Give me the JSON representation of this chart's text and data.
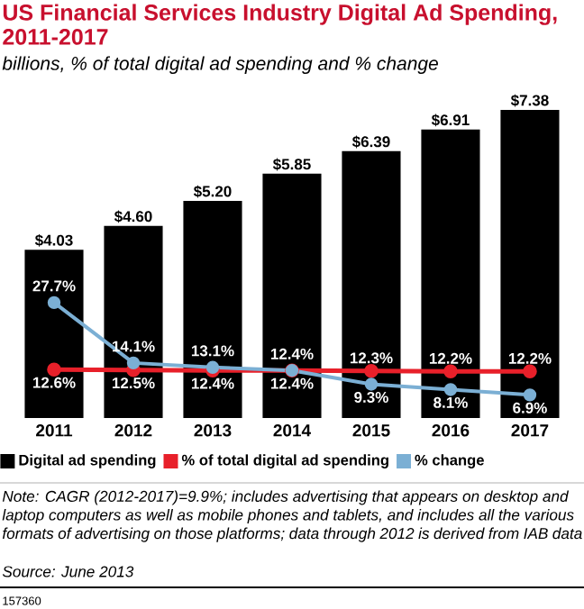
{
  "chart_data": {
    "type": "bar",
    "title": "US Financial Services Industry Digital Ad Spending, 2011-2017",
    "subtitle": "billions, % of total digital ad spending and % change",
    "categories": [
      "2011",
      "2012",
      "2013",
      "2014",
      "2015",
      "2016",
      "2017"
    ],
    "series": [
      {
        "name": "Digital ad spending",
        "color": "#000000",
        "values": [
          4.03,
          4.6,
          5.2,
          5.85,
          6.39,
          6.91,
          7.38
        ],
        "value_labels": [
          "$4.03",
          "$4.60",
          "$5.20",
          "$5.85",
          "$6.39",
          "$6.91",
          "$7.38"
        ]
      },
      {
        "name": "% of total digital ad spending",
        "type": "line",
        "axis": "y2",
        "color": "#e8202a",
        "values": [
          12.6,
          12.5,
          12.4,
          12.4,
          12.3,
          12.2,
          12.2
        ],
        "value_labels": [
          "12.6%",
          "12.5%",
          "12.4%",
          "12.4%",
          "12.3%",
          "12.2%",
          "12.2%"
        ]
      },
      {
        "name": "% change",
        "type": "line",
        "axis": "y2",
        "color": "#7bafd4",
        "values": [
          27.7,
          14.1,
          13.1,
          12.4,
          9.3,
          8.1,
          6.9
        ],
        "value_labels": [
          "27.7%",
          "14.1%",
          "13.1%",
          "12.4%",
          "9.3%",
          "8.1%",
          "6.9%"
        ]
      }
    ],
    "legend": "bottom",
    "marker": "circle",
    "annotations": [
      "Note: CAGR (2012-2017)=9.9%; includes advertising that appears on desktop and laptop computers as well as mobile phones and tablets, and includes all the various formats of advertising on those platforms; data through 2012 is derived from IAB data",
      "Source: June 2013",
      "157360"
    ]
  }
}
